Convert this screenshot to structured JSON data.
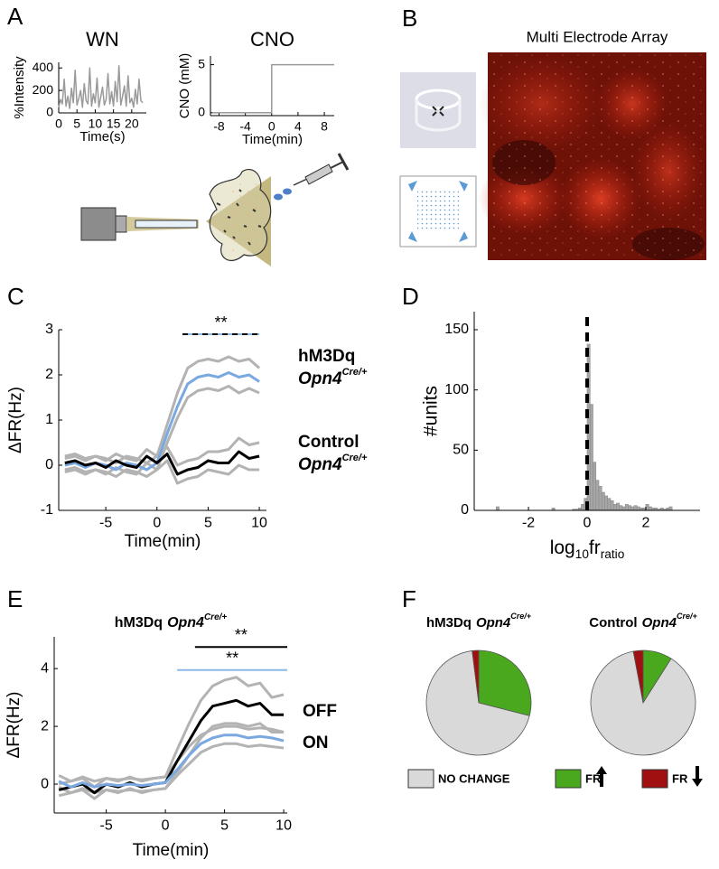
{
  "image_panel": {
    "label": "B",
    "title": "Multi Electrode Array"
  },
  "chart_data": [
    {
      "type": "line",
      "panel": "A",
      "title": "WN",
      "xlabel": "Time(s)",
      "ylabel": "%Intensity",
      "x": [
        0,
        0.5,
        1,
        1.5,
        2,
        2.5,
        3,
        3.5,
        4,
        4.5,
        5,
        5.5,
        6,
        6.5,
        7,
        7.5,
        8,
        8.5,
        9,
        9.5,
        10,
        10.5,
        11,
        11.5,
        12,
        12.5,
        13,
        13.5,
        14,
        14.5,
        15,
        15.5,
        16,
        16.5,
        17,
        17.5,
        18,
        18.5,
        19,
        19.5,
        20,
        20.5,
        21,
        21.5,
        22,
        22.5,
        23
      ],
      "series": [
        {
          "color": "#9a9a9a",
          "values": [
            50,
            120,
            80,
            300,
            60,
            150,
            40,
            220,
            90,
            380,
            70,
            130,
            200,
            50,
            260,
            110,
            80,
            400,
            60,
            170,
            90,
            310,
            50,
            140,
            230,
            70,
            120,
            350,
            80,
            190,
            60,
            280,
            100,
            420,
            70,
            150,
            240,
            60,
            330,
            90,
            130,
            50,
            210,
            80,
            300,
            110,
            90
          ]
        }
      ],
      "xlim": [
        0,
        24
      ],
      "ylim": [
        0,
        450
      ],
      "xticks": [
        0,
        5,
        10,
        15,
        20
      ],
      "yticks": [
        0,
        200,
        400
      ]
    },
    {
      "type": "line",
      "title": "CNO",
      "xlabel": "Time(min)",
      "ylabel": "CNO (mM)",
      "x": [
        -9,
        0,
        0,
        9.5
      ],
      "series": [
        {
          "color": "#9a9a9a",
          "values": [
            0,
            0,
            5,
            5
          ]
        }
      ],
      "xlim": [
        -9.3,
        9.5
      ],
      "ylim": [
        -0.3,
        5.9
      ],
      "xticks": [
        -8,
        -4,
        0,
        4,
        8
      ],
      "yticks": [
        0,
        5
      ]
    },
    {
      "type": "line",
      "panel": "C",
      "xlabel": "Time(min)",
      "ylabel": "ΔFR(Hz)",
      "x": [
        -9,
        -8,
        -7,
        -6,
        -5,
        -4,
        -3,
        -2,
        -1,
        0,
        1,
        2,
        3,
        4,
        5,
        6,
        7,
        8,
        9,
        10
      ],
      "series": [
        {
          "name": "hM3Dq",
          "name_gene": "Opn4",
          "name_sup": "Cre/+",
          "color": "#7aa8e0",
          "band_color": "#b3b3b3",
          "values": [
            0,
            0.05,
            -0.05,
            0.05,
            0,
            -0.1,
            0.05,
            0,
            -0.1,
            0.05,
            0.7,
            1.3,
            1.8,
            1.95,
            2.0,
            1.95,
            2.05,
            1.95,
            2.0,
            1.85
          ],
          "upper": [
            0.15,
            0.2,
            0.1,
            0.2,
            0.15,
            0.05,
            0.2,
            0.15,
            0.05,
            0.2,
            0.9,
            1.6,
            2.15,
            2.3,
            2.35,
            2.3,
            2.4,
            2.3,
            2.35,
            2.15
          ],
          "lower": [
            -0.15,
            -0.1,
            -0.2,
            -0.1,
            -0.15,
            -0.25,
            -0.1,
            -0.15,
            -0.25,
            -0.1,
            0.5,
            1.05,
            1.5,
            1.65,
            1.7,
            1.65,
            1.75,
            1.6,
            1.7,
            1.6
          ]
        },
        {
          "name": "Control",
          "name_gene": "Opn4",
          "name_sup": "Cre/+",
          "color": "#000000",
          "band_color": "#b3b3b3",
          "values": [
            0.05,
            0.1,
            0,
            0.05,
            -0.05,
            0.1,
            0,
            -0.05,
            0.2,
            0.05,
            0.25,
            -0.2,
            -0.1,
            -0.05,
            0.1,
            0.05,
            0.05,
            0.3,
            0.15,
            0.2
          ],
          "upper": [
            0.2,
            0.25,
            0.15,
            0.2,
            0.1,
            0.25,
            0.15,
            0.1,
            0.35,
            0.2,
            0.4,
            0,
            0.1,
            0.15,
            0.3,
            0.3,
            0.35,
            0.6,
            0.45,
            0.5
          ],
          "lower": [
            -0.1,
            -0.05,
            -0.15,
            -0.1,
            -0.2,
            -0.05,
            -0.15,
            -0.2,
            0.05,
            -0.1,
            0.1,
            -0.4,
            -0.3,
            -0.25,
            -0.1,
            -0.15,
            -0.2,
            0,
            -0.1,
            -0.1
          ]
        }
      ],
      "significance": [
        {
          "label": "**",
          "x": [
            2.5,
            10
          ],
          "y": 2.9,
          "color": "#89b8e8",
          "dash_color": "#000000"
        }
      ],
      "xlim": [
        -9.6,
        10.7
      ],
      "ylim": [
        -1,
        3
      ],
      "xticks": [
        -5,
        0,
        5,
        10
      ],
      "yticks": [
        -1,
        0,
        1,
        2,
        3
      ]
    },
    {
      "type": "histogram",
      "panel": "D",
      "xlabel": {
        "base": "log",
        "sub": "10",
        "main": "fr",
        "sub2": "ratio"
      },
      "ylabel": "#units",
      "bins": [
        -3.1,
        -3,
        -2.9,
        -2.8,
        -2.7,
        -2.6,
        -2.5,
        -2.4,
        -2.3,
        -2.2,
        -2.1,
        -2,
        -1.9,
        -1.8,
        -1.7,
        -1.6,
        -1.5,
        -1.4,
        -1.3,
        -1.2,
        -1.1,
        -1,
        -0.9,
        -0.8,
        -0.7,
        -0.6,
        -0.5,
        -0.4,
        -0.3,
        -0.2,
        -0.1,
        0,
        0.1,
        0.2,
        0.3,
        0.4,
        0.5,
        0.6,
        0.7,
        0.8,
        0.9,
        1,
        1.1,
        1.2,
        1.3,
        1.4,
        1.5,
        1.6,
        1.7,
        1.8,
        1.9,
        2,
        2.1,
        2.2,
        2.3,
        2.4,
        2.5,
        2.6,
        2.7,
        2.8,
        2.9
      ],
      "values": [
        3,
        0,
        0,
        0,
        0,
        0,
        0,
        0,
        0,
        0,
        0,
        0,
        0,
        0,
        0,
        0,
        0,
        0,
        0,
        2,
        0,
        0,
        0,
        0,
        0,
        0,
        1,
        1,
        2,
        5,
        10,
        138,
        88,
        40,
        25,
        20,
        15,
        12,
        10,
        8,
        5,
        6,
        4,
        3,
        5,
        4,
        3,
        4,
        3,
        2,
        2,
        5,
        3,
        2,
        2,
        1,
        2,
        1,
        2,
        3
      ],
      "color": "#a6a6a6",
      "vline": 0,
      "xlim": [
        -3.85,
        3.85
      ],
      "ylim": [
        0,
        165
      ],
      "xticks": [
        -2,
        0,
        2
      ],
      "yticks": [
        0,
        50,
        100,
        150
      ]
    },
    {
      "type": "line",
      "panel": "E",
      "title": "hM3Dq",
      "title_gene": "Opn4",
      "title_sup": "Cre/+",
      "xlabel": "Time(min)",
      "ylabel": "ΔFR(Hz)",
      "x": [
        -9,
        -8,
        -7,
        -6,
        -5,
        -4,
        -3,
        -2,
        -1,
        0,
        1,
        2,
        3,
        4,
        5,
        6,
        7,
        8,
        9,
        10
      ],
      "series": [
        {
          "name": "OFF",
          "color": "#000000",
          "band_color": "#b3b3b3",
          "values": [
            -0.2,
            -0.1,
            0,
            -0.3,
            0,
            -0.1,
            0.05,
            -0.1,
            0,
            0.05,
            0.8,
            1.5,
            2.2,
            2.7,
            2.8,
            2.9,
            2.7,
            2.8,
            2.4,
            2.4
          ],
          "upper": [
            0,
            0.1,
            0.2,
            -0.1,
            0.2,
            0.1,
            0.25,
            0.1,
            0.2,
            0.25,
            1.2,
            2.1,
            2.9,
            3.4,
            3.6,
            3.7,
            3.4,
            3.5,
            3.0,
            3.1
          ],
          "lower": [
            -0.4,
            -0.3,
            -0.2,
            -0.5,
            -0.2,
            -0.3,
            -0.15,
            -0.3,
            -0.2,
            -0.15,
            0.4,
            1.0,
            1.6,
            2.0,
            2.1,
            2.1,
            2.0,
            2.1,
            1.8,
            1.8
          ]
        },
        {
          "name": "ON",
          "color": "#7aa8e0",
          "band_color": "#b3b3b3",
          "values": [
            0.1,
            -0.1,
            0.05,
            -0.1,
            0,
            -0.05,
            0,
            -0.05,
            0,
            0.05,
            0.5,
            1.0,
            1.4,
            1.6,
            1.7,
            1.7,
            1.6,
            1.65,
            1.6,
            1.5
          ],
          "upper": [
            0.3,
            0.1,
            0.25,
            0.1,
            0.2,
            0.15,
            0.2,
            0.15,
            0.2,
            0.25,
            0.8,
            1.3,
            1.7,
            1.9,
            2.0,
            2.0,
            1.9,
            1.95,
            1.9,
            1.8
          ],
          "lower": [
            -0.1,
            -0.3,
            -0.15,
            -0.3,
            -0.2,
            -0.25,
            -0.2,
            -0.25,
            -0.2,
            -0.15,
            0.3,
            0.7,
            1.1,
            1.3,
            1.4,
            1.4,
            1.3,
            1.35,
            1.3,
            1.25
          ]
        }
      ],
      "significance": [
        {
          "label": "**",
          "x": [
            2.5,
            10.3
          ],
          "y": 4.75,
          "color": "#000000"
        },
        {
          "label": "**",
          "x": [
            1,
            10.3
          ],
          "y": 3.95,
          "color": "#89b8e8"
        }
      ],
      "xlim": [
        -9.4,
        10.3
      ],
      "ylim": [
        -1,
        5.1
      ],
      "xticks": [
        -5,
        0,
        5,
        10
      ],
      "yticks": [
        0,
        2,
        4
      ]
    },
    {
      "type": "pie",
      "panel": "F",
      "categories": [
        "NO CHANGE",
        "FR",
        "FR"
      ],
      "colors": [
        "#d9d9d9",
        "#4aa81e",
        "#a01010"
      ],
      "pies": [
        {
          "title": "hM3Dq",
          "title_gene": "Opn4",
          "title_sup": "Cre/+",
          "title_color": "#89b8e8",
          "values": [
            69,
            29,
            2
          ]
        },
        {
          "title": "Control",
          "title_gene": "Opn4",
          "title_sup": "Cre/+",
          "title_color": "#000000",
          "values": [
            88,
            9,
            3
          ]
        }
      ]
    }
  ]
}
